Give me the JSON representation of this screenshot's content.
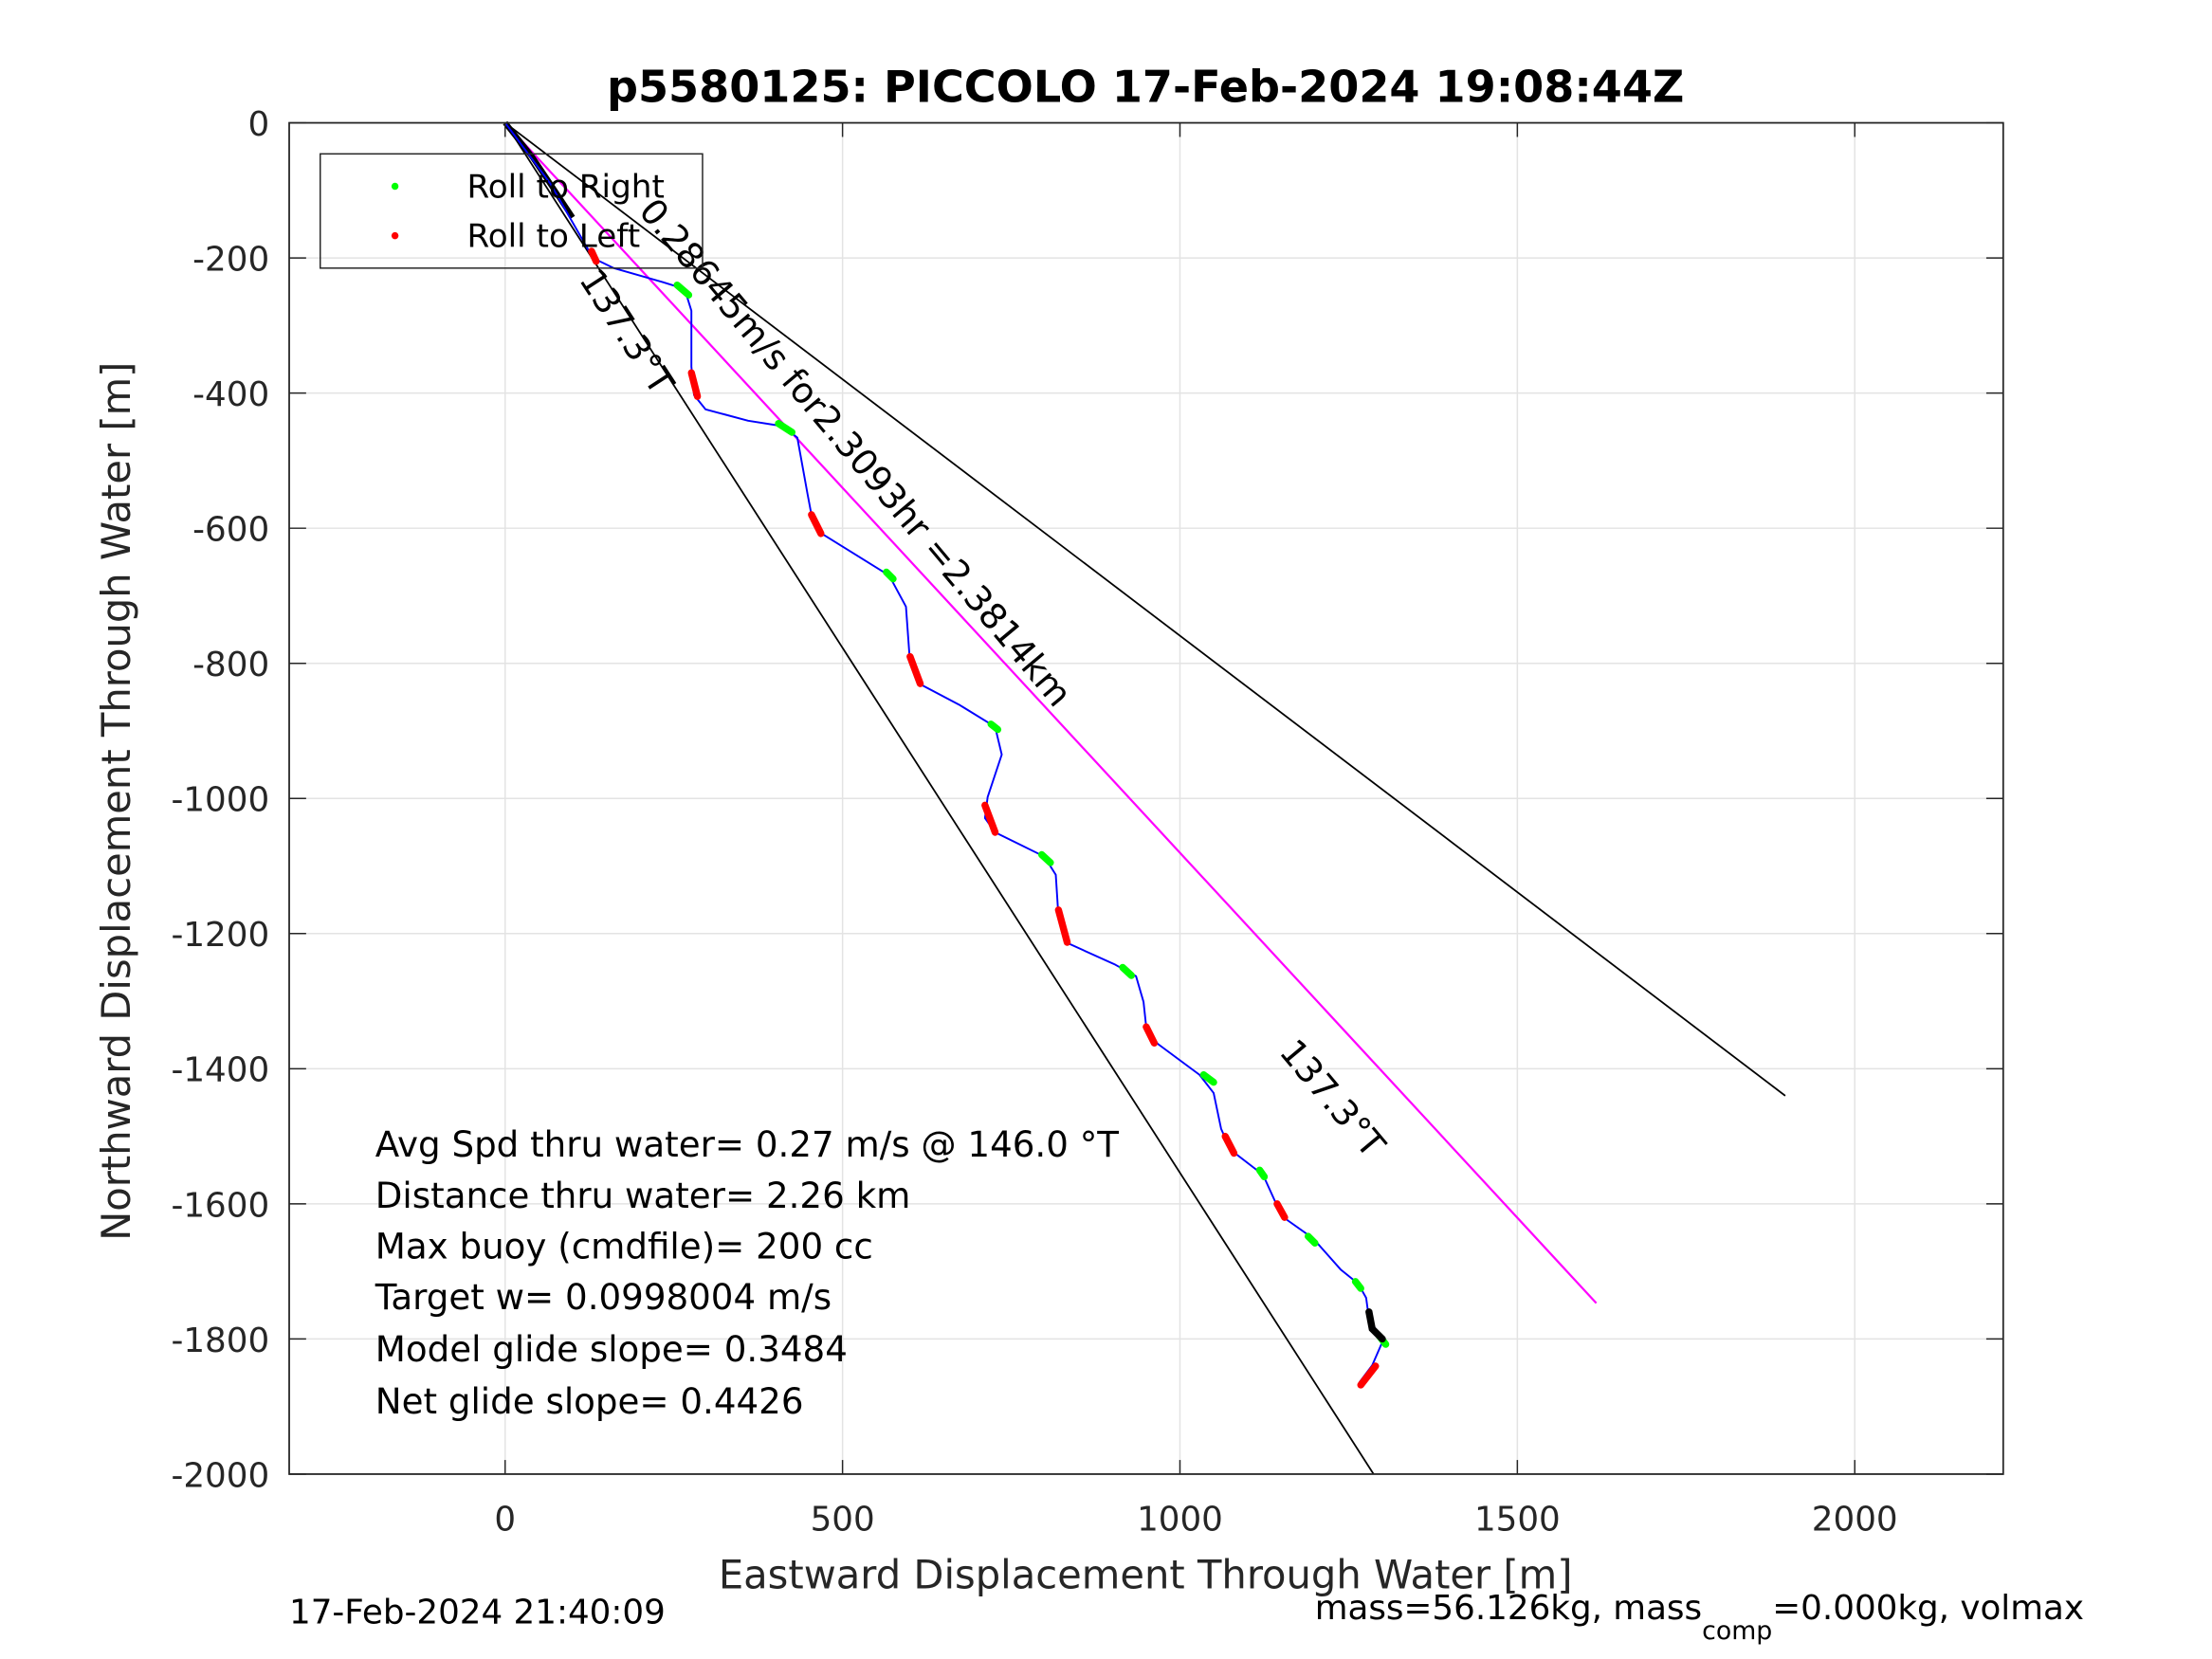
{
  "chart_data": {
    "type": "line",
    "title": "p5580125: PICCOLO 17-Feb-2024 19:08:44Z",
    "xlabel": "Eastward Displacement Through Water [m]",
    "ylabel": "Northward Displacement Through Water [m]",
    "xlim": [
      -320,
      2220
    ],
    "ylim": [
      -2000,
      0
    ],
    "xticks": [
      0,
      500,
      1000,
      1500,
      2000
    ],
    "xtick_labels": [
      "0",
      "500",
      "1000",
      "1500",
      "2000"
    ],
    "yticks": [
      0,
      -200,
      -400,
      -600,
      -800,
      -1000,
      -1200,
      -1400,
      -1600,
      -1800,
      -2000
    ],
    "ytick_labels": [
      "0",
      "-200",
      "-400",
      "-600",
      "-800",
      "-1000",
      "-1200",
      "-1400",
      "-1600",
      "-1800",
      "-2000"
    ],
    "grid": true,
    "legend": {
      "placement": "top-left",
      "entries": [
        {
          "label": "Roll to Right",
          "color": "#00ff00"
        },
        {
          "label": "Roll to Left",
          "color": "#ff0000"
        }
      ]
    },
    "colors": {
      "track": "#0000ff",
      "mean_line": "#ff00ff",
      "cone": "#000000",
      "right": "#00ff00",
      "left": "#ff0000"
    },
    "track": [
      [
        0,
        0
      ],
      [
        67,
        -90
      ],
      [
        109,
        -163
      ],
      [
        130,
        -200
      ],
      [
        161,
        -215
      ],
      [
        234,
        -236
      ],
      [
        266,
        -246
      ],
      [
        276,
        -278
      ],
      [
        276,
        -361
      ],
      [
        280,
        -403
      ],
      [
        297,
        -424
      ],
      [
        360,
        -441
      ],
      [
        412,
        -449
      ],
      [
        433,
        -466
      ],
      [
        448,
        -549
      ],
      [
        456,
        -591
      ],
      [
        469,
        -608
      ],
      [
        569,
        -670
      ],
      [
        594,
        -716
      ],
      [
        600,
        -800
      ],
      [
        615,
        -831
      ],
      [
        674,
        -862
      ],
      [
        726,
        -894
      ],
      [
        736,
        -935
      ],
      [
        715,
        -998
      ],
      [
        711,
        -1029
      ],
      [
        726,
        -1050
      ],
      [
        799,
        -1086
      ],
      [
        816,
        -1113
      ],
      [
        820,
        -1175
      ],
      [
        831,
        -1213
      ],
      [
        904,
        -1246
      ],
      [
        935,
        -1263
      ],
      [
        946,
        -1301
      ],
      [
        950,
        -1338
      ],
      [
        967,
        -1363
      ],
      [
        1029,
        -1409
      ],
      [
        1050,
        -1436
      ],
      [
        1061,
        -1489
      ],
      [
        1075,
        -1520
      ],
      [
        1123,
        -1557
      ],
      [
        1144,
        -1603
      ],
      [
        1159,
        -1624
      ],
      [
        1197,
        -1651
      ],
      [
        1238,
        -1697
      ],
      [
        1264,
        -1718
      ],
      [
        1276,
        -1739
      ],
      [
        1280,
        -1770
      ],
      [
        1301,
        -1802
      ],
      [
        1285,
        -1839
      ],
      [
        1266,
        -1864
      ]
    ],
    "roll_right": [
      [
        [
          255,
          -240
        ],
        [
          272,
          -255
        ]
      ],
      [
        [
          405,
          -445
        ],
        [
          425,
          -458
        ]
      ],
      [
        [
          565,
          -665
        ],
        [
          575,
          -675
        ]
      ],
      [
        [
          720,
          -890
        ],
        [
          730,
          -898
        ]
      ],
      [
        [
          795,
          -1083
        ],
        [
          808,
          -1095
        ]
      ],
      [
        [
          915,
          -1250
        ],
        [
          928,
          -1262
        ]
      ],
      [
        [
          1035,
          -1409
        ],
        [
          1050,
          -1420
        ]
      ],
      [
        [
          1118,
          -1550
        ],
        [
          1125,
          -1560
        ]
      ],
      [
        [
          1190,
          -1648
        ],
        [
          1200,
          -1658
        ]
      ],
      [
        [
          1260,
          -1715
        ],
        [
          1268,
          -1725
        ]
      ],
      [
        [
          1295,
          -1795
        ],
        [
          1305,
          -1808
        ]
      ]
    ],
    "roll_left": [
      [
        [
          128,
          -190
        ],
        [
          135,
          -205
        ]
      ],
      [
        [
          276,
          -370
        ],
        [
          285,
          -405
        ]
      ],
      [
        [
          454,
          -580
        ],
        [
          468,
          -608
        ]
      ],
      [
        [
          600,
          -790
        ],
        [
          615,
          -830
        ]
      ],
      [
        [
          711,
          -1010
        ],
        [
          726,
          -1050
        ]
      ],
      [
        [
          820,
          -1165
        ],
        [
          833,
          -1213
        ]
      ],
      [
        [
          950,
          -1338
        ],
        [
          962,
          -1362
        ]
      ],
      [
        [
          1067,
          -1500
        ],
        [
          1080,
          -1525
        ]
      ],
      [
        [
          1144,
          -1600
        ],
        [
          1155,
          -1620
        ]
      ],
      [
        [
          1268,
          -1868
        ],
        [
          1290,
          -1840
        ]
      ]
    ],
    "surface": [
      [
        1280,
        -1760
      ],
      [
        1285,
        -1785
      ],
      [
        1300,
        -1800
      ]
    ],
    "cone_left_end": [
      1287,
      -2000
    ],
    "cone_right_end": [
      1897,
      -1440
    ],
    "mean_line_end": [
      1617,
      -1747
    ],
    "annotations": {
      "heading_1": "137.3°T",
      "mean_vector": "0.28645m/s for2.3093hr =2.3814km",
      "heading_2": "137.3°T"
    },
    "stats": [
      "Avg Spd thru water=  0.27 m/s @ 146.0 °T",
      "Distance thru water=  2.26 km",
      "Max buoy (cmdfile)= 200 cc",
      "Target w= 0.0998004 m/s",
      "Model glide slope= 0.3484",
      "Net glide slope= 0.4426"
    ],
    "footer_left": "17-Feb-2024 21:40:09",
    "footer_right": {
      "pre": "mass=56.126kg, mass",
      "sub": "comp",
      "post": "=0.000kg, volmax"
    }
  }
}
